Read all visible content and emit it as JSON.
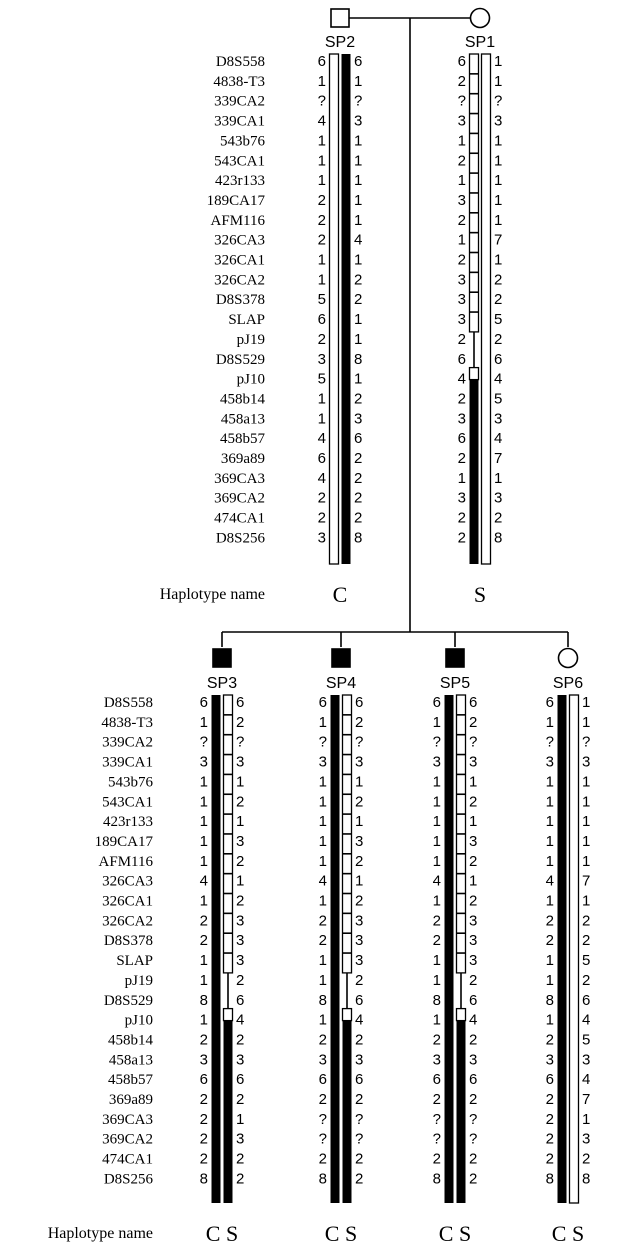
{
  "markers": [
    "D8S558",
    "4838-T3",
    "339CA2",
    "339CA1",
    "543b76",
    "543CA1",
    "423r133",
    "189CA17",
    "AFM116",
    "326CA3",
    "326CA1",
    "326CA2",
    "D8S378",
    "SLAP",
    "pJ19",
    "D8S529",
    "pJ10",
    "458b14",
    "458a13",
    "458b57",
    "369a89",
    "369CA3",
    "369CA2",
    "474CA1",
    "D8S256"
  ],
  "haplotype_label": "Haplotype name",
  "individuals": [
    {
      "id": "SP2",
      "sex": "male",
      "affected": false,
      "left": [
        "6",
        "1",
        "?",
        "4",
        "1",
        "1",
        "1",
        "2",
        "2",
        "2",
        "1",
        "1",
        "5",
        "6",
        "2",
        "3",
        "5",
        "1",
        "1",
        "4",
        "6",
        "4",
        "2",
        "2",
        "3"
      ],
      "right": [
        "6",
        "1",
        "?",
        "3",
        "1",
        "1",
        "1",
        "1",
        "1",
        "4",
        "1",
        "2",
        "2",
        "1",
        "1",
        "8",
        "1",
        "2",
        "3",
        "6",
        "2",
        "2",
        "2",
        "2",
        "8"
      ],
      "left_bar": "white",
      "right_bar": "black",
      "haplotypes": "C"
    },
    {
      "id": "SP1",
      "sex": "female",
      "affected": false,
      "left": [
        "6",
        "2",
        "?",
        "3",
        "1",
        "2",
        "1",
        "3",
        "2",
        "1",
        "2",
        "3",
        "3",
        "3",
        "2",
        "6",
        "4",
        "2",
        "3",
        "6",
        "2",
        "1",
        "3",
        "2",
        "2"
      ],
      "right": [
        "1",
        "1",
        "?",
        "3",
        "1",
        "1",
        "1",
        "1",
        "1",
        "7",
        "1",
        "2",
        "2",
        "5",
        "2",
        "6",
        "4",
        "5",
        "3",
        "4",
        "7",
        "1",
        "3",
        "2",
        "8"
      ],
      "left_bar": "recombinant",
      "right_bar": "white",
      "haplotypes": "S"
    },
    {
      "id": "SP3",
      "sex": "male",
      "affected": true,
      "left": [
        "6",
        "1",
        "?",
        "3",
        "1",
        "1",
        "1",
        "1",
        "1",
        "4",
        "1",
        "2",
        "2",
        "1",
        "1",
        "8",
        "1",
        "2",
        "3",
        "6",
        "2",
        "2",
        "2",
        "2",
        "8"
      ],
      "right": [
        "6",
        "2",
        "?",
        "3",
        "1",
        "2",
        "1",
        "3",
        "2",
        "1",
        "2",
        "3",
        "3",
        "3",
        "2",
        "6",
        "4",
        "2",
        "3",
        "6",
        "2",
        "1",
        "3",
        "2",
        "2"
      ],
      "left_bar": "black",
      "right_bar": "recombinant",
      "haplotypes": "C S"
    },
    {
      "id": "SP4",
      "sex": "male",
      "affected": true,
      "left": [
        "6",
        "1",
        "?",
        "3",
        "1",
        "1",
        "1",
        "1",
        "1",
        "4",
        "1",
        "2",
        "2",
        "1",
        "1",
        "8",
        "1",
        "2",
        "3",
        "6",
        "2",
        "?",
        "?",
        "2",
        "8"
      ],
      "right": [
        "6",
        "2",
        "?",
        "3",
        "1",
        "2",
        "1",
        "3",
        "2",
        "1",
        "2",
        "3",
        "3",
        "3",
        "2",
        "6",
        "4",
        "2",
        "3",
        "6",
        "2",
        "?",
        "?",
        "2",
        "2"
      ],
      "left_bar": "black",
      "right_bar": "recombinant",
      "haplotypes": "C S"
    },
    {
      "id": "SP5",
      "sex": "male",
      "affected": true,
      "left": [
        "6",
        "1",
        "?",
        "3",
        "1",
        "1",
        "1",
        "1",
        "1",
        "4",
        "1",
        "2",
        "2",
        "1",
        "1",
        "8",
        "1",
        "2",
        "3",
        "6",
        "2",
        "?",
        "?",
        "2",
        "8"
      ],
      "right": [
        "6",
        "2",
        "?",
        "3",
        "1",
        "2",
        "1",
        "3",
        "2",
        "1",
        "2",
        "3",
        "3",
        "3",
        "2",
        "6",
        "4",
        "2",
        "3",
        "6",
        "2",
        "?",
        "?",
        "2",
        "2"
      ],
      "left_bar": "black",
      "right_bar": "recombinant",
      "haplotypes": "C S"
    },
    {
      "id": "SP6",
      "sex": "female",
      "affected": false,
      "left": [
        "6",
        "1",
        "?",
        "3",
        "1",
        "1",
        "1",
        "1",
        "1",
        "4",
        "1",
        "2",
        "2",
        "1",
        "1",
        "8",
        "1",
        "2",
        "3",
        "6",
        "2",
        "2",
        "2",
        "2",
        "8"
      ],
      "right": [
        "1",
        "1",
        "?",
        "3",
        "1",
        "1",
        "1",
        "1",
        "1",
        "7",
        "1",
        "2",
        "2",
        "5",
        "2",
        "6",
        "4",
        "5",
        "3",
        "4",
        "7",
        "1",
        "3",
        "2",
        "8"
      ],
      "left_bar": "black",
      "right_bar": "white",
      "haplotypes": "C S"
    }
  ]
}
